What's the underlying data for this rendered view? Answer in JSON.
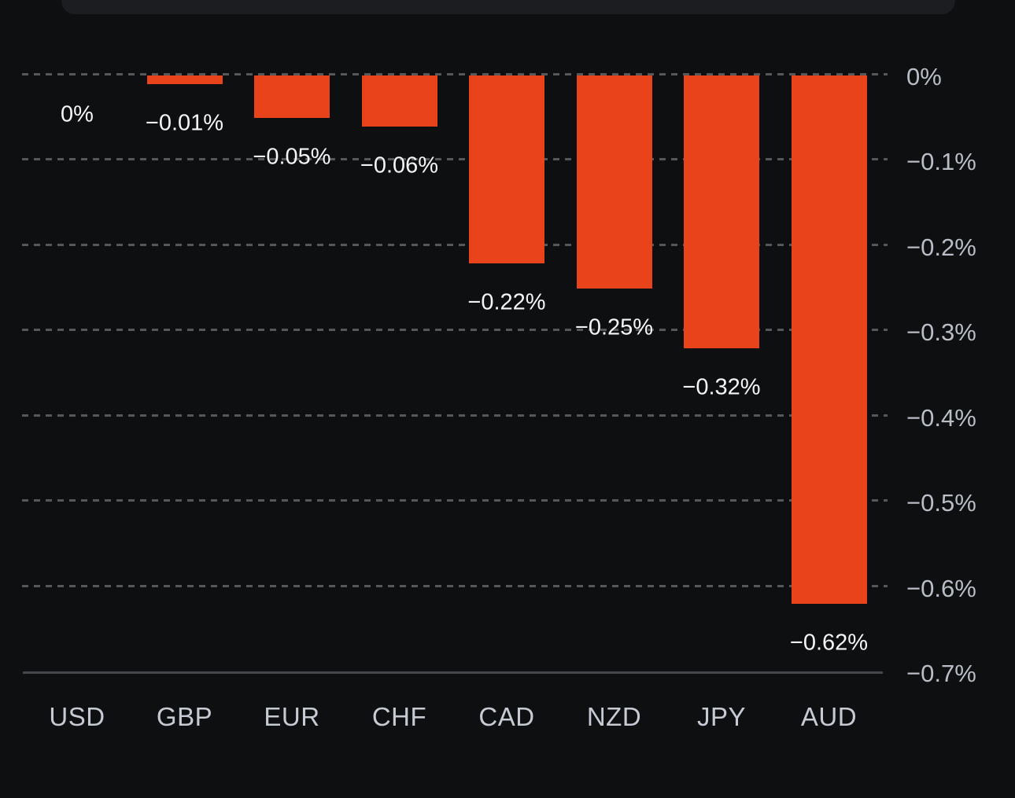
{
  "app": {
    "background_color": "#0e0f11",
    "top_card_color": "#1c1d20"
  },
  "chart_data": {
    "type": "bar",
    "title": "",
    "categories": [
      "USD",
      "GBP",
      "EUR",
      "CHF",
      "CAD",
      "NZD",
      "JPY",
      "AUD"
    ],
    "values": [
      0,
      -0.01,
      -0.05,
      -0.06,
      -0.22,
      -0.25,
      -0.32,
      -0.62
    ],
    "value_labels": [
      "0%",
      "−0.01%",
      "−0.05%",
      "−0.06%",
      "−0.22%",
      "−0.25%",
      "−0.32%",
      "−0.62%"
    ],
    "y_tick_labels": [
      "0%",
      "−0.1%",
      "−0.2%",
      "−0.3%",
      "−0.4%",
      "−0.5%",
      "−0.6%",
      "−0.7%"
    ],
    "y_tick_values": [
      0,
      -0.1,
      -0.2,
      -0.3,
      -0.4,
      -0.5,
      -0.6,
      -0.7
    ],
    "ylim": [
      -0.7,
      0
    ],
    "xlabel": "",
    "ylabel": "",
    "legend": null,
    "grid": {
      "style": "dashed-horizontal",
      "color": "#55575b"
    },
    "axis_line_color": "#43464b",
    "bar_color": "#e8431b",
    "value_label_color": "#f5f5f6",
    "y_tick_color": "#b9bdc6",
    "category_label_color": "#c6cad3"
  }
}
